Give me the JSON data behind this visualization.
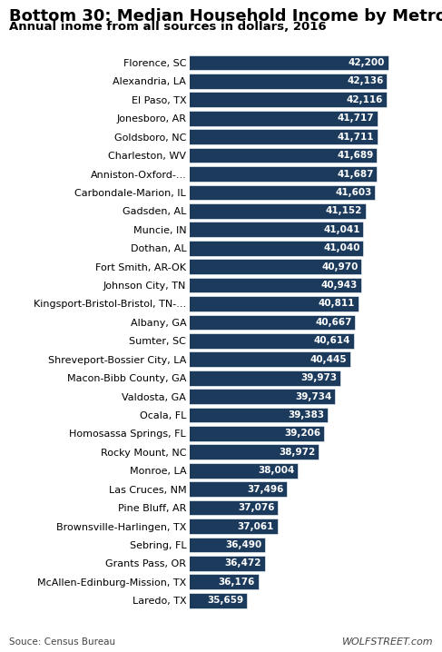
{
  "title": "Bottom 30: Median Household Income by Metro",
  "subtitle": "Annual inome from all sources in dollars, 2016",
  "source": "Souce: Census Bureau",
  "watermark": "WOLFSTREET.com",
  "categories": [
    "Florence, SC",
    "Alexandria, LA",
    "El Paso, TX",
    "Jonesboro, AR",
    "Goldsboro, NC",
    "Charleston, WV",
    "Anniston-Oxford-...",
    "Carbondale-Marion, IL",
    "Gadsden, AL",
    "Muncie, IN",
    "Dothan, AL",
    "Fort Smith, AR-OK",
    "Johnson City, TN",
    "Kingsport-Bristol-Bristol, TN-...",
    "Albany, GA",
    "Sumter, SC",
    "Shreveport-Bossier City, LA",
    "Macon-Bibb County, GA",
    "Valdosta, GA",
    "Ocala, FL",
    "Homosassa Springs, FL",
    "Rocky Mount, NC",
    "Monroe, LA",
    "Las Cruces, NM",
    "Pine Bluff, AR",
    "Brownsville-Harlingen, TX",
    "Sebring, FL",
    "Grants Pass, OR",
    "McAllen-Edinburg-Mission, TX",
    "Laredo, TX"
  ],
  "values": [
    42200,
    42136,
    42116,
    41717,
    41711,
    41689,
    41687,
    41603,
    41152,
    41041,
    41040,
    40970,
    40943,
    40811,
    40667,
    40614,
    40445,
    39973,
    39734,
    39383,
    39206,
    38972,
    38004,
    37496,
    37076,
    37061,
    36490,
    36472,
    36176,
    35659
  ],
  "bar_color": "#1B3A5C",
  "value_color": "#FFFFFF",
  "label_color": "#000000",
  "title_color": "#000000",
  "subtitle_color": "#000000",
  "bg_color": "#FFFFFF",
  "title_fontsize": 13,
  "subtitle_fontsize": 9.5,
  "label_fontsize": 8,
  "value_fontsize": 7.5,
  "source_fontsize": 7.5,
  "watermark_fontsize": 8,
  "xlim_min": 33000,
  "xlim_max": 44500
}
